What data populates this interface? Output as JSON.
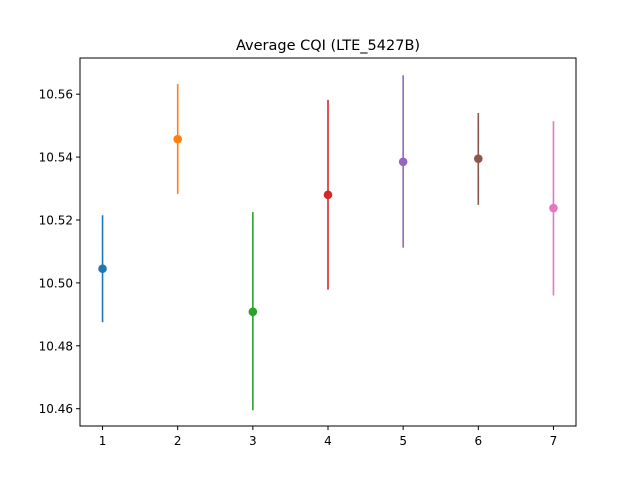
{
  "chart_data": {
    "type": "scatter",
    "title": "Average CQI (LTE_5427B)",
    "xlabel": "",
    "ylabel": "",
    "xlim": [
      0.7,
      7.3
    ],
    "ylim": [
      10.4545,
      10.5715
    ],
    "xticks": [
      1,
      2,
      3,
      4,
      5,
      6,
      7
    ],
    "yticks": [
      10.46,
      10.48,
      10.5,
      10.52,
      10.54,
      10.56
    ],
    "ytick_labels": [
      "10.46",
      "10.48",
      "10.50",
      "10.52",
      "10.54",
      "10.56"
    ],
    "grid": false,
    "series": [
      {
        "x": 1,
        "y": 10.5045,
        "err_low": 10.4875,
        "err_high": 10.5215,
        "color": "#1f77b4"
      },
      {
        "x": 2,
        "y": 10.5457,
        "err_low": 10.5283,
        "err_high": 10.5632,
        "color": "#ff7f0e"
      },
      {
        "x": 3,
        "y": 10.4908,
        "err_low": 10.4595,
        "err_high": 10.5225,
        "color": "#2ca02c"
      },
      {
        "x": 4,
        "y": 10.528,
        "err_low": 10.4978,
        "err_high": 10.5582,
        "color": "#d62728"
      },
      {
        "x": 5,
        "y": 10.5385,
        "err_low": 10.5112,
        "err_high": 10.566,
        "color": "#9467bd"
      },
      {
        "x": 6,
        "y": 10.5395,
        "err_low": 10.5248,
        "err_high": 10.554,
        "color": "#8c564b"
      },
      {
        "x": 7,
        "y": 10.5238,
        "err_low": 10.496,
        "err_high": 10.5514,
        "color": "#e377c2"
      }
    ]
  }
}
